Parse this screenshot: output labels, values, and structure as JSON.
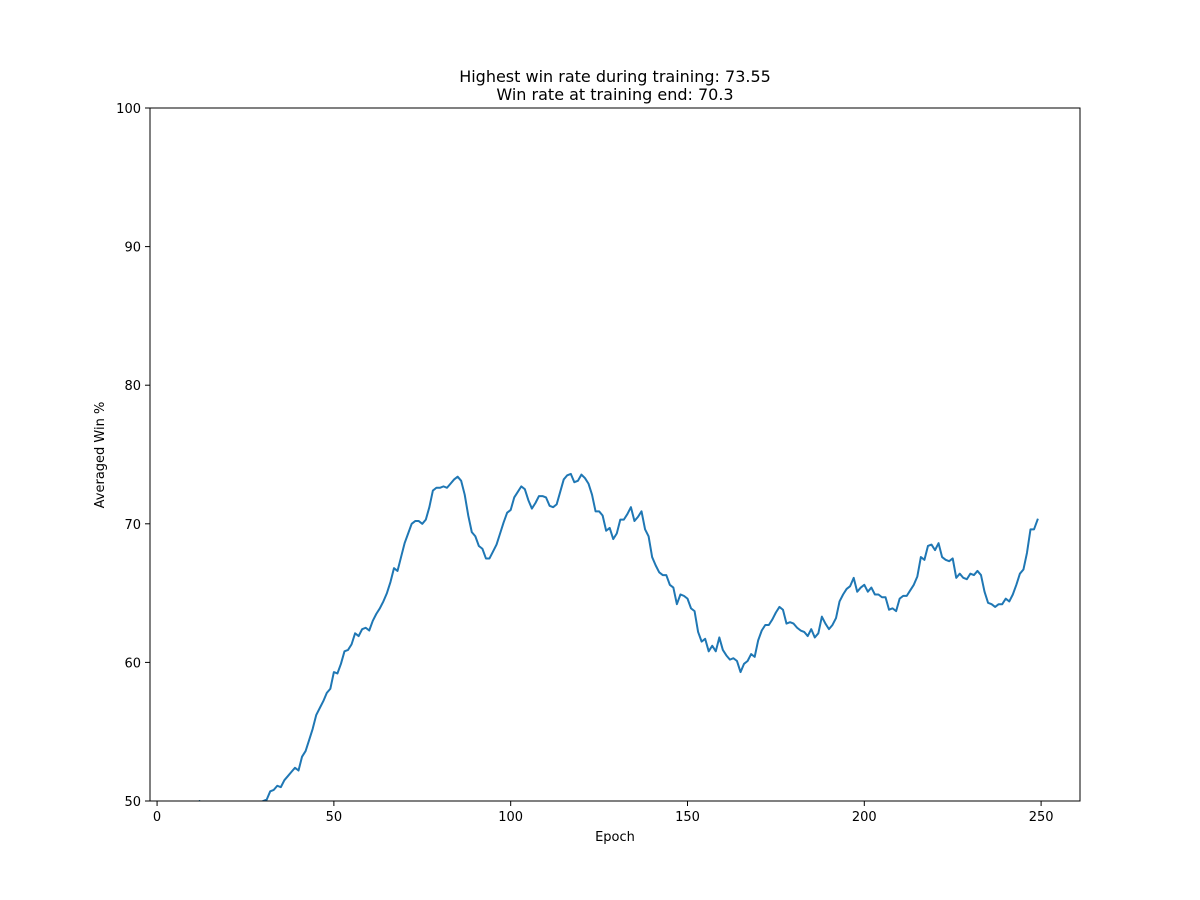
{
  "chart_data": {
    "type": "line",
    "title_lines": [
      "Highest win rate during training: 73.55",
      "Win rate at training end: 70.3"
    ],
    "xlabel": "Epoch",
    "ylabel": "Averaged Win %",
    "xlim": [
      -2,
      261
    ],
    "ylim": [
      50,
      100
    ],
    "xticks": [
      0,
      50,
      100,
      150,
      200,
      250
    ],
    "yticks": [
      50,
      60,
      70,
      80,
      90,
      100
    ],
    "grid": false,
    "color": "#1f77b4",
    "series": [
      {
        "x": [
          0,
          1,
          2,
          3,
          4,
          5,
          6,
          7,
          8,
          9,
          10,
          11,
          12,
          13,
          14,
          15,
          16,
          17,
          18,
          19,
          20,
          21,
          22,
          23,
          24,
          25,
          26,
          27,
          28,
          29,
          30,
          31,
          32,
          33,
          34,
          35,
          36,
          37,
          38,
          39,
          40,
          41,
          42,
          43,
          44,
          45,
          46,
          47,
          48,
          49,
          50,
          51,
          52,
          53,
          54,
          55,
          56,
          57,
          58,
          59,
          60,
          61,
          62,
          63,
          64,
          65,
          66,
          67,
          68,
          69,
          70,
          71,
          72,
          73,
          74,
          75,
          76,
          77,
          78,
          79,
          80,
          81,
          82,
          83,
          84,
          85,
          86,
          87,
          88,
          89,
          90,
          91,
          92,
          93,
          94,
          95,
          96,
          97,
          98,
          99,
          100,
          101,
          102,
          103,
          104,
          105,
          106,
          107,
          108,
          109,
          110,
          111,
          112,
          113,
          114,
          115,
          116,
          117,
          118,
          119,
          120,
          121,
          122,
          123,
          124,
          125,
          126,
          127,
          128,
          129,
          130,
          131,
          132,
          133,
          134,
          135,
          136,
          137,
          138,
          139,
          140,
          141,
          142,
          143,
          144,
          145,
          146,
          147,
          148,
          149,
          150,
          151,
          152,
          153,
          154,
          155,
          156,
          157,
          158,
          159,
          160,
          161,
          162,
          163,
          164,
          165,
          166,
          167,
          168,
          169,
          170,
          171,
          172,
          173,
          174,
          175,
          176,
          177,
          178,
          179,
          180,
          181,
          182,
          183,
          184,
          185,
          186,
          187,
          188,
          189,
          190,
          191,
          192,
          193,
          194,
          195,
          196,
          197,
          198,
          199,
          200,
          201,
          202,
          203,
          204,
          205,
          206,
          207,
          208,
          209,
          210,
          211,
          212,
          213,
          214,
          215,
          216,
          217,
          218,
          219,
          220,
          221,
          222,
          223,
          224,
          225,
          226,
          227,
          228,
          229,
          230,
          231,
          232,
          233,
          234,
          235,
          236,
          237,
          238,
          239,
          240,
          241,
          242,
          243,
          244,
          245,
          246,
          247,
          248,
          249
        ],
        "values": [
          45.0,
          45.3,
          45.7,
          46.0,
          46.4,
          46.8,
          47.1,
          47.5,
          47.9,
          48.3,
          48.7,
          49.1,
          50.0,
          49.6,
          49.3,
          49.0,
          48.8,
          48.6,
          48.4,
          48.3,
          48.2,
          48.2,
          48.3,
          48.5,
          48.7,
          48.9,
          49.1,
          49.4,
          49.7,
          49.9,
          50.0,
          50.1,
          50.7,
          50.8,
          51.1,
          51.0,
          51.5,
          51.8,
          52.1,
          52.4,
          52.2,
          53.2,
          53.6,
          54.4,
          55.2,
          56.2,
          56.7,
          57.2,
          57.8,
          58.1,
          59.3,
          59.2,
          59.9,
          60.8,
          60.9,
          61.3,
          62.1,
          61.9,
          62.4,
          62.5,
          62.3,
          63.0,
          63.5,
          63.9,
          64.4,
          65.0,
          65.8,
          66.8,
          66.6,
          67.6,
          68.6,
          69.3,
          70.0,
          70.2,
          70.2,
          70.0,
          70.3,
          71.2,
          72.4,
          72.6,
          72.6,
          72.7,
          72.6,
          72.9,
          73.2,
          73.4,
          73.1,
          72.1,
          70.6,
          69.4,
          69.1,
          68.4,
          68.2,
          67.5,
          67.5,
          68.0,
          68.5,
          69.3,
          70.1,
          70.8,
          71.0,
          71.9,
          72.3,
          72.7,
          72.5,
          71.7,
          71.1,
          71.5,
          72.0,
          72.0,
          71.9,
          71.3,
          71.2,
          71.4,
          72.3,
          73.2,
          73.5,
          73.6,
          73.0,
          73.1,
          73.55,
          73.3,
          72.9,
          72.1,
          70.9,
          70.9,
          70.6,
          69.5,
          69.7,
          68.9,
          69.3,
          70.3,
          70.3,
          70.7,
          71.2,
          70.2,
          70.5,
          70.9,
          69.6,
          69.1,
          67.6,
          67.0,
          66.5,
          66.3,
          66.3,
          65.6,
          65.4,
          64.2,
          64.9,
          64.8,
          64.6,
          63.9,
          63.7,
          62.2,
          61.5,
          61.7,
          60.8,
          61.2,
          60.8,
          61.8,
          60.9,
          60.5,
          60.2,
          60.3,
          60.1,
          59.3,
          59.9,
          60.1,
          60.6,
          60.4,
          61.6,
          62.3,
          62.7,
          62.7,
          63.1,
          63.6,
          64.0,
          63.8,
          62.8,
          62.9,
          62.8,
          62.5,
          62.3,
          62.2,
          61.9,
          62.4,
          61.8,
          62.1,
          63.3,
          62.8,
          62.4,
          62.7,
          63.2,
          64.4,
          64.9,
          65.3,
          65.5,
          66.1,
          65.1,
          65.4,
          65.6,
          65.1,
          65.4,
          64.9,
          64.9,
          64.7,
          64.7,
          63.8,
          63.9,
          63.7,
          64.6,
          64.8,
          64.8,
          65.2,
          65.6,
          66.2,
          67.6,
          67.4,
          68.4,
          68.5,
          68.1,
          68.6,
          67.6,
          67.4,
          67.3,
          67.5,
          66.1,
          66.4,
          66.1,
          66.0,
          66.4,
          66.3,
          66.6,
          66.3,
          65.1,
          64.3,
          64.2,
          64.0,
          64.2,
          64.2,
          64.6,
          64.4,
          64.9,
          65.6,
          66.4,
          66.7,
          67.9,
          69.6,
          69.6,
          70.3
        ]
      }
    ]
  }
}
